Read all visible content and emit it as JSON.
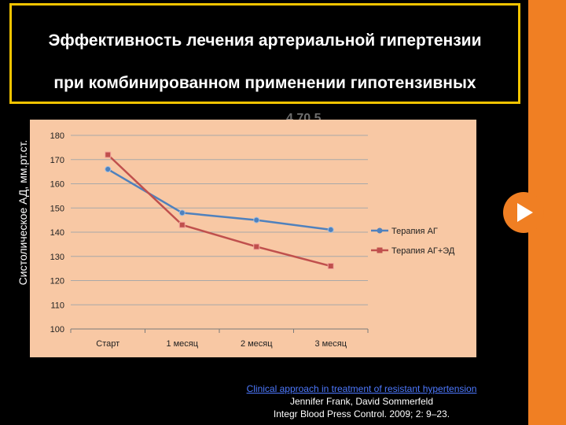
{
  "slide": {
    "title_line1": "Эффективность лечения артериальной гипертензии",
    "title_line2": "при комбинированном применении гипотензивных",
    "ghost_text": "4 70 5",
    "y_caption": "Систолическое АД, мм.рт.ст.",
    "citation": {
      "link": "Clinical approach in treatment of resistant hypertension",
      "authors": "Jennifer Frank, David Sommerfeld",
      "journal": "Integr Blood Press Control. 2009; 2: 9–23."
    },
    "colors": {
      "background": "#000000",
      "accent": "#f07f23",
      "title_border": "#f4c400",
      "plot_bg": "#f8c8a4"
    },
    "next_icon": "play-arrow-icon"
  },
  "chart_data": {
    "type": "line",
    "categories": [
      "Старт",
      "1 месяц",
      "2 месяц",
      "3 месяц"
    ],
    "series": [
      {
        "name": "Терапия АГ",
        "values": [
          166,
          148,
          145,
          141
        ],
        "color": "#4f81bd",
        "marker": "circle"
      },
      {
        "name": "Терапия АГ+ЭД",
        "values": [
          172,
          143,
          134,
          126
        ],
        "color": "#c0504d",
        "marker": "square"
      }
    ],
    "y_ticks": [
      "100",
      "110",
      "120",
      "130",
      "140",
      "150",
      "160",
      "170",
      "180"
    ],
    "ylim": [
      100,
      180
    ],
    "ylabel": "Систолическое АД, мм.рт.ст.",
    "grid": true,
    "legend": "right"
  }
}
